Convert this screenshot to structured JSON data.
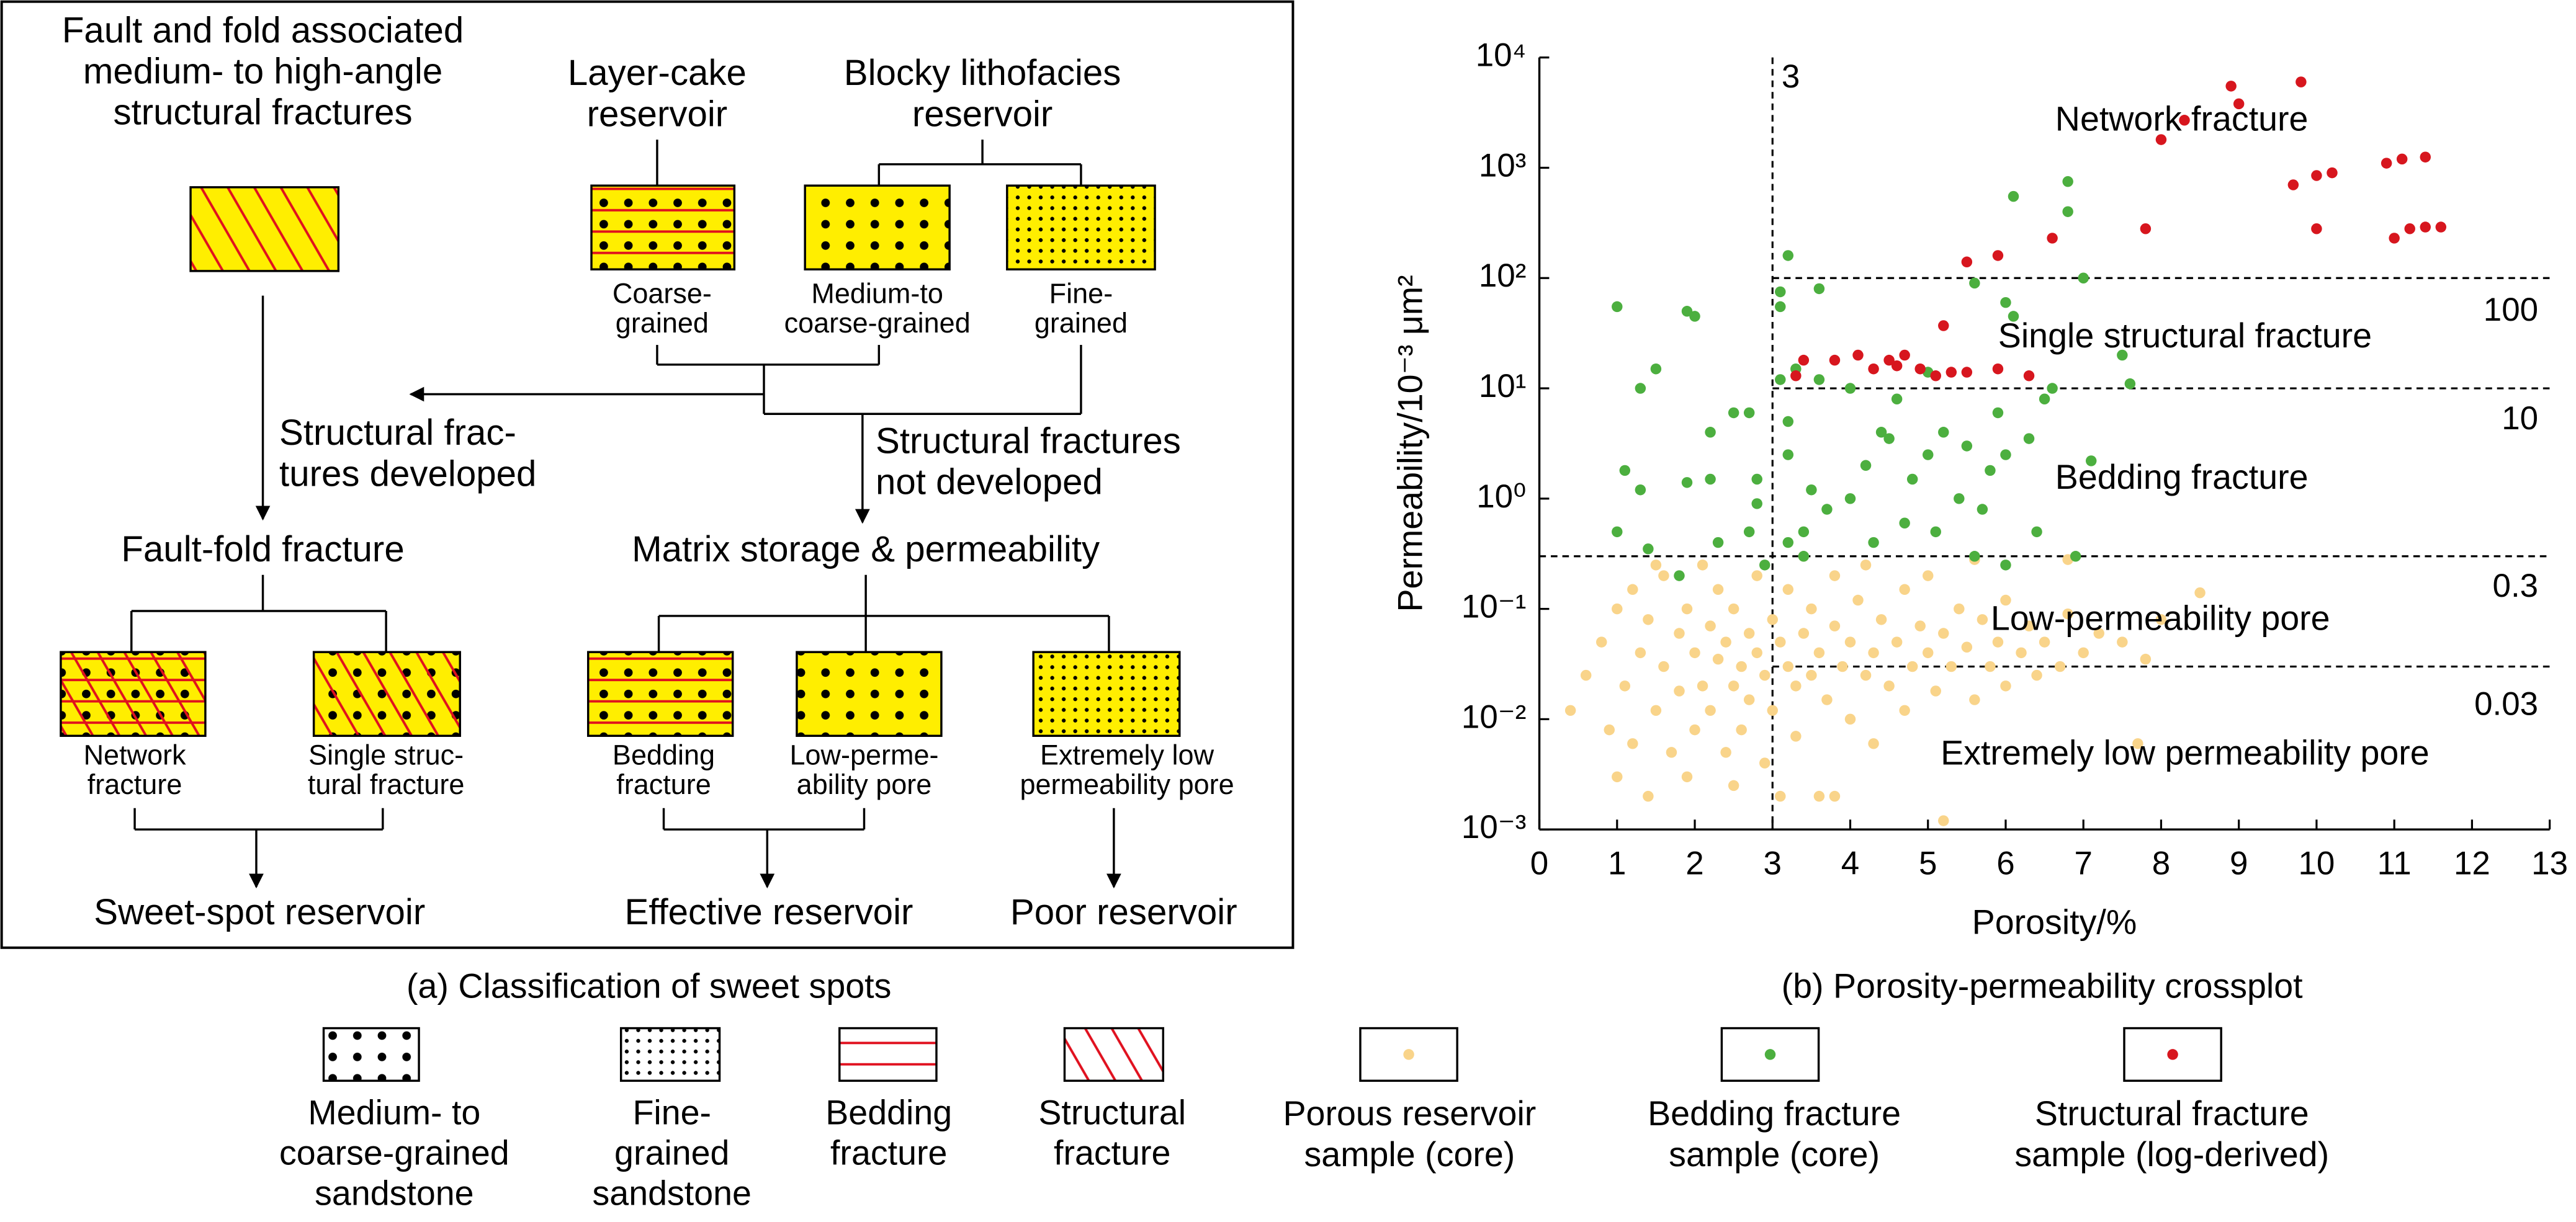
{
  "diagram": {
    "nodes": [
      {
        "lines": [
          "Fault and fold associated",
          "medium- to high-angle",
          "structural fractures"
        ]
      },
      {
        "lines": [
          "Layer-cake",
          "reservoir"
        ]
      },
      {
        "lines": [
          "Blocky lithofacies",
          "reservoir"
        ]
      },
      {
        "lines": [
          "Coarse-",
          "grained"
        ]
      },
      {
        "lines": [
          "Medium-to",
          "coarse-grained"
        ]
      },
      {
        "lines": [
          "Fine-",
          "grained"
        ]
      },
      {
        "lines": [
          "Structural frac-",
          "tures developed"
        ]
      },
      {
        "lines": [
          "Structural fractures",
          "not developed"
        ]
      },
      {
        "lines": [
          "Fault-fold fracture"
        ]
      },
      {
        "lines": [
          "Matrix storage & permeability"
        ]
      },
      {
        "lines": [
          "Network",
          "fracture"
        ]
      },
      {
        "lines": [
          "Single struc-",
          "tural fracture"
        ]
      },
      {
        "lines": [
          "Bedding",
          "fracture"
        ]
      },
      {
        "lines": [
          "Low-perme-",
          "ability pore"
        ]
      },
      {
        "lines": [
          "Extremely low",
          "permeability pore"
        ]
      },
      {
        "lines": [
          "Sweet-spot reservoir"
        ]
      },
      {
        "lines": [
          "Effective reservoir"
        ]
      },
      {
        "lines": [
          "Poor reservoir"
        ]
      }
    ],
    "captions": [
      "(a) Classification of sweet spots",
      "(b) Porosity-permeability crossplot"
    ],
    "legend": [
      {
        "lines": [
          "Medium- to",
          "coarse-grained",
          "sandstone"
        ]
      },
      {
        "lines": [
          "Fine-",
          "grained",
          "sandstone"
        ]
      },
      {
        "lines": [
          "Bedding",
          "fracture"
        ]
      },
      {
        "lines": [
          "Structural",
          "fracture"
        ]
      }
    ]
  },
  "chart_data": {
    "type": "scatter",
    "x_label": "Porosity/%",
    "y_label": "Permeability/10⁻³ μm²",
    "xlim": [
      0,
      13
    ],
    "xticks": [
      0,
      1,
      2,
      3,
      4,
      5,
      6,
      7,
      8,
      9,
      10,
      11,
      12,
      13
    ],
    "ylim": [
      0.001,
      10000
    ],
    "y_log": true,
    "yticks": [
      {
        "value": 0.001,
        "label": "10⁻³"
      },
      {
        "value": 0.01,
        "label": "10⁻²"
      },
      {
        "value": 0.1,
        "label": "10⁻¹"
      },
      {
        "value": 1,
        "label": "10⁰"
      },
      {
        "value": 10,
        "label": "10¹"
      },
      {
        "value": 100,
        "label": "10²"
      },
      {
        "value": 1000,
        "label": "10³"
      },
      {
        "value": 10000,
        "label": "10⁴"
      }
    ],
    "thresholds": [
      {
        "axis": "x",
        "value": 3
      },
      {
        "axis": "y",
        "value": 100
      },
      {
        "axis": "y",
        "value": 10
      },
      {
        "axis": "y",
        "value": 0.3
      },
      {
        "axis": "y",
        "value": 0.03
      }
    ],
    "annotations": [
      "Network fracture",
      "Single structural fracture",
      "Bedding fracture",
      "Low-permeability pore",
      "Extremely low permeability pore"
    ],
    "series": [
      {
        "name": "Porous reservoir sample (core)",
        "color": "#f9d48a",
        "x": [
          0.4,
          0.6,
          0.8,
          0.9,
          1.0,
          1.0,
          1.1,
          1.2,
          1.2,
          1.3,
          1.4,
          1.4,
          1.5,
          1.6,
          1.6,
          1.7,
          1.8,
          1.8,
          1.9,
          1.9,
          2.0,
          2.0,
          2.1,
          2.1,
          2.2,
          2.2,
          2.3,
          2.3,
          2.4,
          2.4,
          2.5,
          2.5,
          2.6,
          2.6,
          2.7,
          2.7,
          2.8,
          2.8,
          2.9,
          2.9,
          3.0,
          3.0,
          3.1,
          3.1,
          3.2,
          3.2,
          3.3,
          3.3,
          3.4,
          3.5,
          3.5,
          3.6,
          3.6,
          3.7,
          3.8,
          3.8,
          3.9,
          4.0,
          4.0,
          4.1,
          4.2,
          4.3,
          4.3,
          4.4,
          4.5,
          4.6,
          4.7,
          4.7,
          4.8,
          4.9,
          5.0,
          5.0,
          5.1,
          5.2,
          5.2,
          5.3,
          5.4,
          5.5,
          5.6,
          5.7,
          5.8,
          5.9,
          6.0,
          6.0,
          6.2,
          6.3,
          6.4,
          6.5,
          6.7,
          6.8,
          7.0,
          7.2,
          7.5,
          7.8,
          8.0,
          8.5,
          7.7,
          3.4,
          4.2,
          5.6,
          2.5,
          3.8,
          6.8,
          1.5
        ],
        "values": [
          0.012,
          0.025,
          0.05,
          0.008,
          0.1,
          0.003,
          0.02,
          0.15,
          0.006,
          0.04,
          0.002,
          0.08,
          0.012,
          0.03,
          0.2,
          0.005,
          0.06,
          0.018,
          0.1,
          0.003,
          0.04,
          0.008,
          0.25,
          0.02,
          0.07,
          0.012,
          0.035,
          0.15,
          0.005,
          0.05,
          0.02,
          0.1,
          0.03,
          0.008,
          0.06,
          0.015,
          0.2,
          0.04,
          0.025,
          0.004,
          0.08,
          0.012,
          0.05,
          0.002,
          0.03,
          0.15,
          0.02,
          0.007,
          0.06,
          0.1,
          0.025,
          0.04,
          0.002,
          0.015,
          0.07,
          0.2,
          0.03,
          0.05,
          0.01,
          0.12,
          0.025,
          0.04,
          0.006,
          0.08,
          0.02,
          0.05,
          0.15,
          0.012,
          0.03,
          0.07,
          0.04,
          0.2,
          0.018,
          0.06,
          0.0012,
          0.03,
          0.1,
          0.045,
          0.015,
          0.08,
          0.03,
          0.05,
          0.12,
          0.02,
          0.04,
          0.07,
          0.025,
          0.05,
          0.03,
          0.09,
          0.04,
          0.06,
          0.05,
          0.035,
          0.08,
          0.14,
          0.006,
          0.3,
          0.25,
          0.28,
          0.0025,
          0.002,
          0.28,
          0.25
        ]
      },
      {
        "name": "Bedding fracture sample (core)",
        "color": "#4caf3f",
        "x": [
          1.0,
          1.9,
          2.0,
          1.3,
          1.5,
          2.5,
          2.2,
          1.1,
          1.3,
          2.2,
          1.9,
          1.0,
          1.4,
          2.3,
          2.8,
          2.7,
          2.9,
          1.8,
          3.2,
          3.1,
          3.1,
          3.6,
          3.3,
          3.6,
          4.0,
          4.6,
          5.0,
          5.6,
          6.0,
          6.1,
          6.8,
          6.8,
          6.1,
          7.0,
          3.1,
          3.2,
          3.2,
          3.5,
          3.4,
          3.2,
          3.4,
          3.7,
          4.0,
          4.2,
          4.5,
          4.8,
          5.0,
          5.2,
          5.5,
          5.4,
          5.7,
          5.8,
          6.0,
          6.3,
          6.5,
          6.6,
          4.3,
          4.7,
          5.1,
          5.6,
          6.0,
          6.4,
          6.9,
          7.1,
          7.5,
          7.6,
          2.7,
          2.8,
          4.4,
          5.9
        ],
        "values": [
          55,
          50,
          45,
          10,
          15,
          6,
          4,
          1.8,
          1.2,
          1.5,
          1.4,
          0.5,
          0.35,
          0.4,
          0.9,
          0.5,
          0.25,
          0.2,
          160,
          75,
          55,
          80,
          15,
          12,
          10,
          8,
          14,
          90,
          60,
          45,
          750,
          400,
          550,
          100,
          12,
          5,
          2.5,
          1.2,
          0.5,
          0.4,
          0.3,
          0.8,
          1.0,
          2.0,
          3.5,
          1.5,
          2.5,
          4,
          3,
          1.0,
          0.8,
          1.8,
          2.5,
          3.5,
          8,
          10,
          0.4,
          0.6,
          0.5,
          0.3,
          0.25,
          0.5,
          0.3,
          2.2,
          20,
          11,
          6,
          1.5,
          4,
          6
        ]
      },
      {
        "name": "Structural fracture sample (log-derived)",
        "color": "#d7161e",
        "x": [
          8.9,
          9.8,
          9.0,
          8.3,
          8.0,
          9.7,
          10.0,
          10.2,
          10.9,
          11.1,
          11.4,
          10.0,
          11.0,
          11.2,
          11.4,
          11.6,
          7.8,
          6.6,
          5.9,
          5.5,
          3.3,
          3.4,
          3.8,
          4.1,
          4.3,
          4.5,
          4.6,
          4.7,
          4.9,
          5.1,
          5.3,
          5.5,
          5.9,
          5.2,
          6.3
        ],
        "values": [
          5500,
          6000,
          3800,
          2700,
          1800,
          700,
          850,
          900,
          1100,
          1200,
          1250,
          280,
          230,
          280,
          290,
          290,
          280,
          230,
          160,
          140,
          13,
          18,
          18,
          20,
          15,
          18,
          16,
          20,
          15,
          13,
          14,
          14,
          15,
          37,
          13
        ]
      }
    ]
  }
}
